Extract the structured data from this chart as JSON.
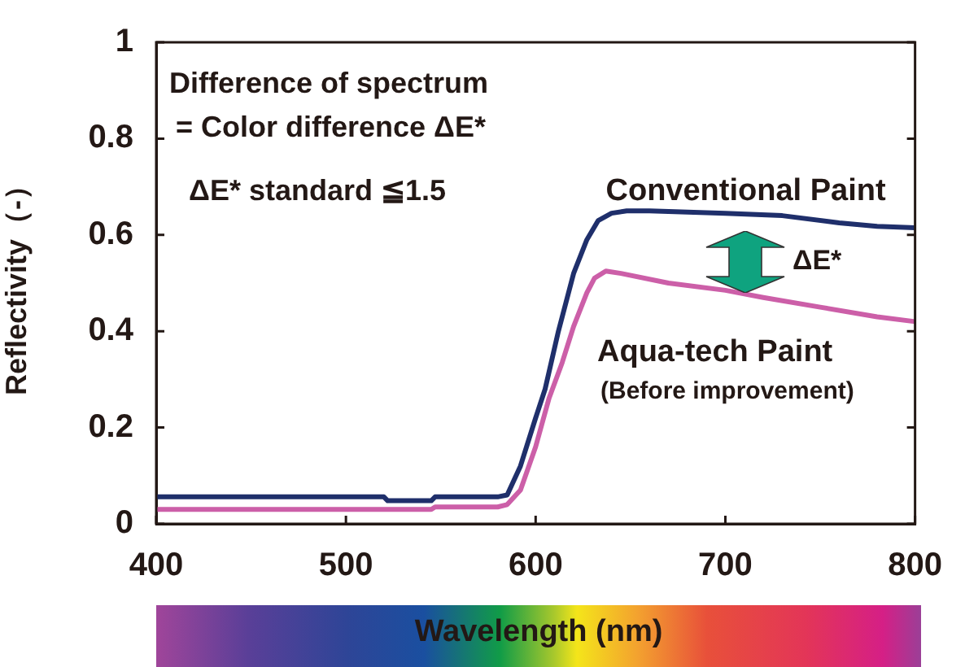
{
  "chart_data": {
    "type": "line",
    "xlabel": "Wavelength (nm)",
    "ylabel": "Reflectivity（-）",
    "xlim": [
      400,
      800
    ],
    "xticks": [
      400,
      500,
      600,
      700,
      800
    ],
    "ylim": [
      0,
      1
    ],
    "yticks": [
      0,
      0.2,
      0.4,
      0.6,
      0.8,
      1
    ],
    "grid": false,
    "legend": false,
    "marker": "none",
    "line_style": "solid",
    "series": [
      {
        "name": "Conventional Paint",
        "color": "#1f2f6b",
        "x": [
          400,
          450,
          520,
          522,
          545,
          547,
          580,
          585,
          592,
          600,
          605,
          612,
          620,
          627,
          633,
          640,
          648,
          660,
          700,
          730,
          760,
          780,
          800
        ],
        "values": [
          0.056,
          0.056,
          0.056,
          0.048,
          0.048,
          0.056,
          0.056,
          0.06,
          0.12,
          0.22,
          0.28,
          0.4,
          0.52,
          0.59,
          0.63,
          0.645,
          0.65,
          0.65,
          0.645,
          0.64,
          0.625,
          0.618,
          0.615
        ]
      },
      {
        "name": "Aqua-tech Paint",
        "color": "#cc5fa8",
        "x": [
          400,
          450,
          520,
          545,
          547,
          580,
          585,
          592,
          600,
          607,
          614,
          620,
          627,
          631,
          637,
          645,
          670,
          700,
          720,
          750,
          780,
          800
        ],
        "values": [
          0.03,
          0.03,
          0.03,
          0.03,
          0.035,
          0.035,
          0.04,
          0.07,
          0.16,
          0.26,
          0.335,
          0.41,
          0.48,
          0.51,
          0.525,
          0.52,
          0.5,
          0.485,
          0.47,
          0.45,
          0.43,
          0.42
        ]
      }
    ],
    "annotations": [
      "Difference of spectrum",
      "= Color difference ΔE*",
      "ΔE* standard ≦1.5",
      "ΔE*",
      "(Before improvement)"
    ]
  }
}
